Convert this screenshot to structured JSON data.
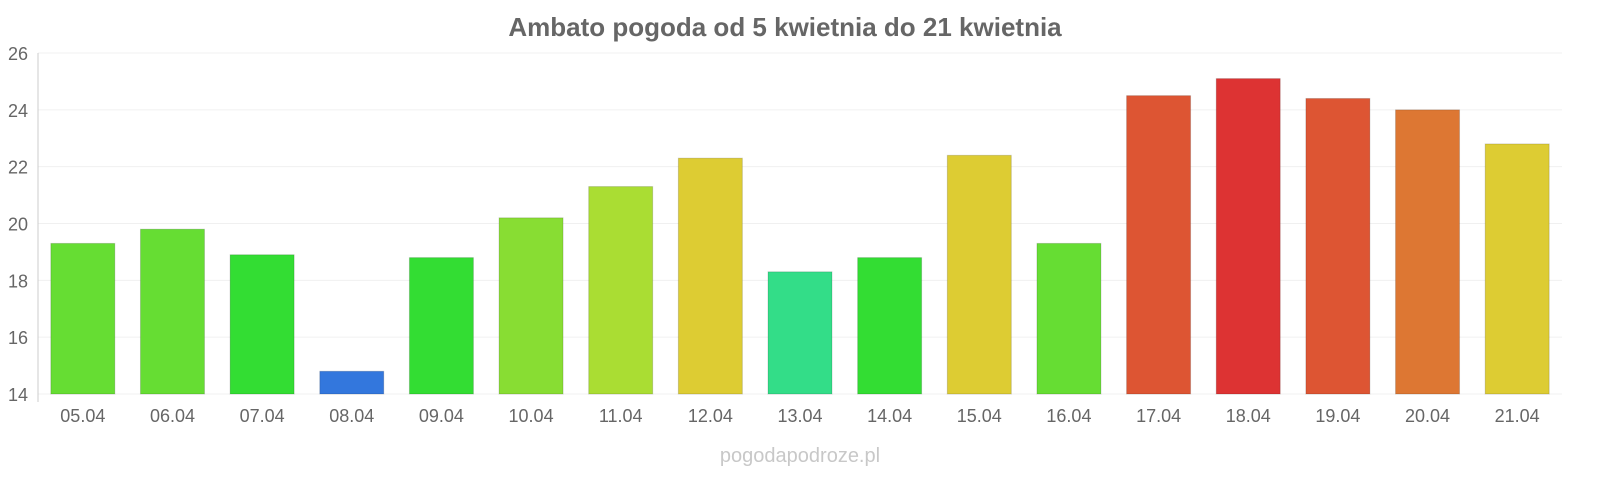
{
  "chart_data": {
    "type": "bar",
    "title": "Ambato pogoda od 5 kwietnia do 21 kwietnia",
    "xlabel": "",
    "ylabel": "",
    "ylim": [
      14,
      26
    ],
    "yticks": [
      14,
      16,
      18,
      20,
      22,
      24,
      26
    ],
    "grid": true,
    "categories": [
      "05.04",
      "06.04",
      "07.04",
      "08.04",
      "09.04",
      "10.04",
      "11.04",
      "12.04",
      "13.04",
      "14.04",
      "15.04",
      "16.04",
      "17.04",
      "18.04",
      "19.04",
      "20.04",
      "21.04"
    ],
    "values": [
      19.3,
      19.8,
      18.9,
      14.8,
      18.8,
      20.2,
      21.3,
      22.3,
      18.3,
      18.8,
      22.4,
      19.3,
      24.5,
      25.1,
      24.4,
      24.0,
      22.8
    ],
    "colors": [
      "#66dd33",
      "#66dd33",
      "#33dd33",
      "#3377dd",
      "#33dd33",
      "#88dd33",
      "#aadd33",
      "#ddcc33",
      "#33dd88",
      "#33dd33",
      "#ddcc33",
      "#66dd33",
      "#dd5533",
      "#dd3333",
      "#dd5533",
      "#dd7733",
      "#ddcc33"
    ],
    "watermark": "pogodapodroze.pl"
  }
}
